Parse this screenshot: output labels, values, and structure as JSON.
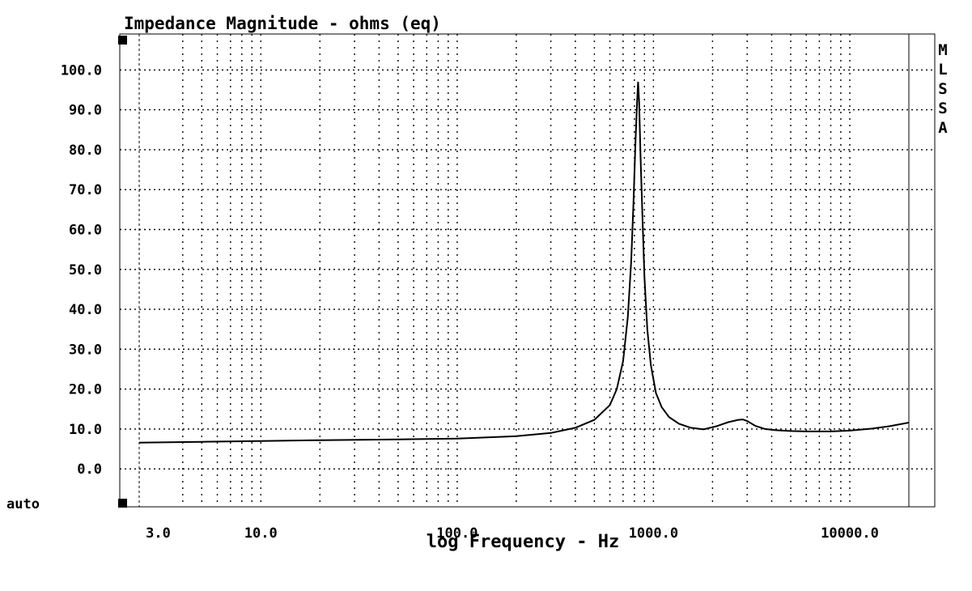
{
  "chart_data": {
    "type": "line",
    "title": "Impedance Magnitude - ohms (eq)",
    "xlabel": "log Frequency - Hz",
    "ylabel": "",
    "x_scale": "log",
    "xlim": [
      2.4,
      20000
    ],
    "ylim": [
      -9.5,
      109
    ],
    "grid": true,
    "y_ticks": [
      {
        "value": 100,
        "label": "100.0"
      },
      {
        "value": 90,
        "label": "90.0"
      },
      {
        "value": 80,
        "label": "80.0"
      },
      {
        "value": 70,
        "label": "70.0"
      },
      {
        "value": 60,
        "label": "60.0"
      },
      {
        "value": 50,
        "label": "50.0"
      },
      {
        "value": 40,
        "label": "40.0"
      },
      {
        "value": 30,
        "label": "30.0"
      },
      {
        "value": 20,
        "label": "20.0"
      },
      {
        "value": 10,
        "label": "10.0"
      },
      {
        "value": 0,
        "label": "0.0"
      }
    ],
    "y_extra_label": "auto",
    "x_ticks": [
      {
        "value": 3,
        "label": "3.0"
      },
      {
        "value": 10,
        "label": "10.0"
      },
      {
        "value": 100,
        "label": "100.0"
      },
      {
        "value": 1000,
        "label": "1000.0"
      },
      {
        "value": 10000,
        "label": "10000.0"
      }
    ],
    "x_gridlines": [
      4,
      5,
      6,
      7,
      8,
      9,
      10,
      20,
      30,
      40,
      50,
      60,
      70,
      80,
      90,
      100,
      200,
      300,
      400,
      500,
      600,
      700,
      800,
      900,
      1000,
      2000,
      3000,
      4000,
      5000,
      6000,
      7000,
      8000,
      9000,
      10000
    ],
    "series": [
      {
        "name": "",
        "x": [
          2.4,
          5,
          10,
          20,
          50,
          100,
          200,
          300,
          400,
          500,
          600,
          650,
          700,
          740,
          770,
          790,
          810,
          825,
          835,
          845,
          860,
          880,
          900,
          930,
          970,
          1030,
          1100,
          1200,
          1350,
          1550,
          1800,
          2100,
          2400,
          2700,
          2850,
          3000,
          3300,
          3700,
          4200,
          5000,
          6000,
          8000,
          10000,
          13000,
          16000,
          20000
        ],
        "y": [
          6.6,
          6.8,
          7.0,
          7.2,
          7.4,
          7.6,
          8.2,
          9.0,
          10.3,
          12.3,
          16.0,
          20.0,
          27.0,
          38.0,
          52.0,
          66.0,
          82.0,
          92.0,
          97.0,
          92.0,
          78.0,
          62.0,
          48.0,
          35.0,
          26.0,
          19.0,
          15.5,
          13.0,
          11.3,
          10.3,
          9.9,
          10.7,
          11.7,
          12.3,
          12.4,
          12.0,
          10.8,
          10.0,
          9.7,
          9.5,
          9.4,
          9.4,
          9.6,
          10.1,
          10.7,
          11.6
        ]
      }
    ],
    "side_label_letters": [
      "M",
      "L",
      "S",
      "S",
      "A"
    ]
  }
}
